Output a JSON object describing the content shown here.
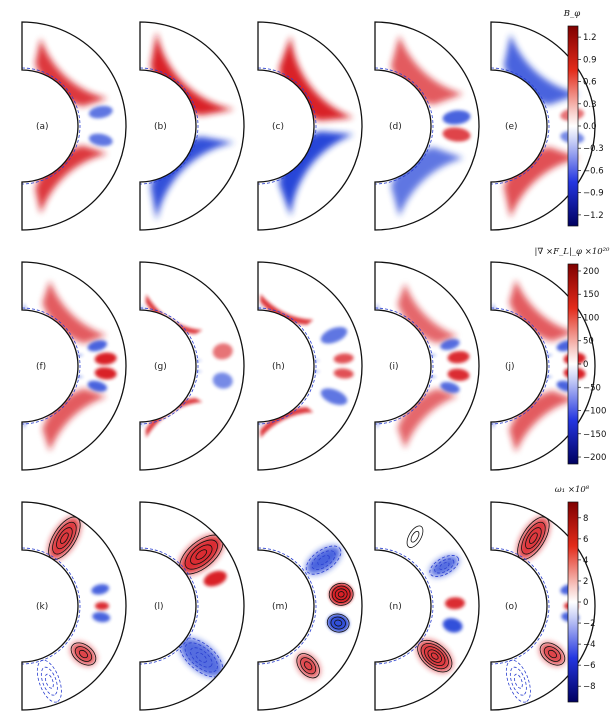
{
  "figure": {
    "rows": [
      {
        "id": "row-btheta",
        "colorbar": {
          "title": "B_φ",
          "ticks": [
            "1.2",
            "0.9",
            "0.6",
            "0.3",
            "0.0",
            "−0.3",
            "−0.6",
            "−0.9",
            "−1.2"
          ],
          "range": [
            -1.35,
            1.35
          ],
          "cmap": "seismic"
        },
        "panels": [
          {
            "label": "(a)"
          },
          {
            "label": "(b)"
          },
          {
            "label": "(c)"
          },
          {
            "label": "(d)"
          },
          {
            "label": "(e)"
          }
        ]
      },
      {
        "id": "row-curl-force",
        "colorbar": {
          "title": "|∇ ×F_L|_φ ×10²⁰",
          "ticks": [
            "200",
            "150",
            "100",
            "50",
            "0",
            "−50",
            "−100",
            "−150",
            "−200"
          ],
          "range": [
            -215,
            215
          ],
          "cmap": "seismic"
        },
        "panels": [
          {
            "label": "(f)"
          },
          {
            "label": "(g)"
          },
          {
            "label": "(h)"
          },
          {
            "label": "(i)"
          },
          {
            "label": "(j)"
          }
        ]
      },
      {
        "id": "row-omega",
        "colorbar": {
          "title": "ω₁ ×10⁸",
          "ticks": [
            "8",
            "6",
            "4",
            "2",
            "0",
            "−2",
            "−4",
            "−6",
            "−8"
          ],
          "range": [
            -9.5,
            9.5
          ],
          "cmap": "seismic"
        },
        "panels": [
          {
            "label": "(k)"
          },
          {
            "label": "(l)"
          },
          {
            "label": "(m)"
          },
          {
            "label": "(n)"
          },
          {
            "label": "(o)"
          }
        ]
      }
    ],
    "colors": {
      "positive": "#d7191c",
      "negative": "#1f3cd6",
      "neutral": "#ffffff",
      "outline": "#111111",
      "contour_dashed": "#2a3fd0"
    }
  }
}
